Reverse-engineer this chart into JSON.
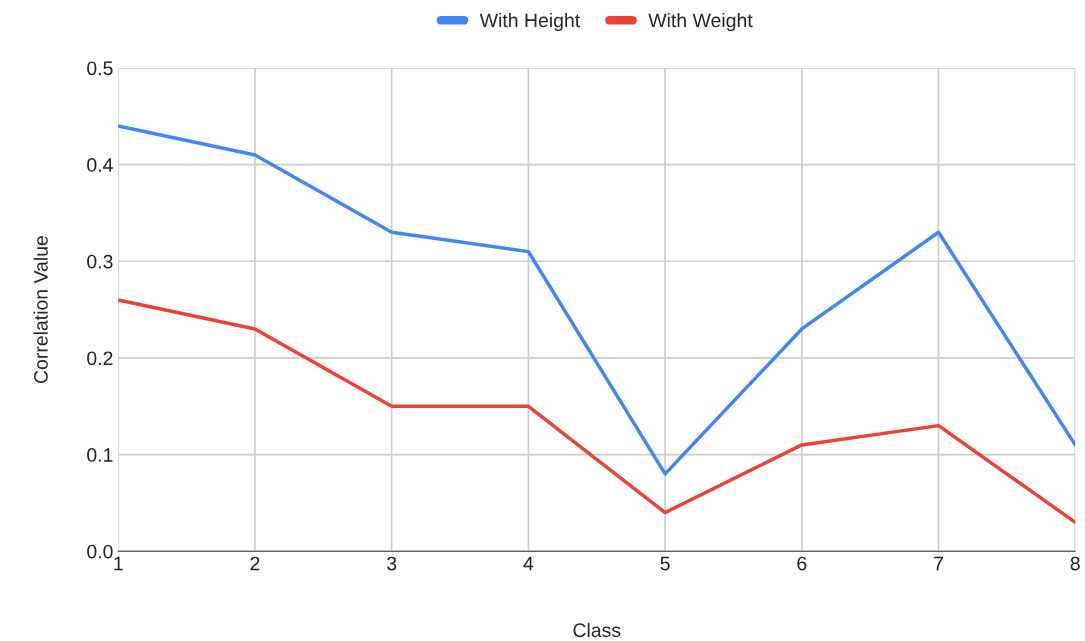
{
  "chart_data": {
    "type": "line",
    "xlabel": "Class",
    "ylabel": "Correlation Value",
    "x": [
      1,
      2,
      3,
      4,
      5,
      6,
      7,
      8
    ],
    "series": [
      {
        "name": "With Height",
        "color": "#4285f4",
        "values": [
          0.44,
          0.41,
          0.33,
          0.31,
          0.08,
          0.23,
          0.33,
          0.11
        ]
      },
      {
        "name": "With Weight",
        "color": "#ea4335",
        "values": [
          0.26,
          0.23,
          0.15,
          0.15,
          0.04,
          0.11,
          0.13,
          0.03
        ]
      }
    ],
    "xlim": [
      1,
      8
    ],
    "xticks": [
      1,
      2,
      3,
      4,
      5,
      6,
      7,
      8
    ],
    "ylim": [
      0,
      0.5
    ],
    "yticks": [
      {
        "value": 0,
        "label": "0.0"
      },
      0.1,
      0.2,
      0.3,
      0.4,
      0.5
    ],
    "grid": true,
    "legend": "top",
    "marker": "none",
    "line_style": "solid"
  }
}
